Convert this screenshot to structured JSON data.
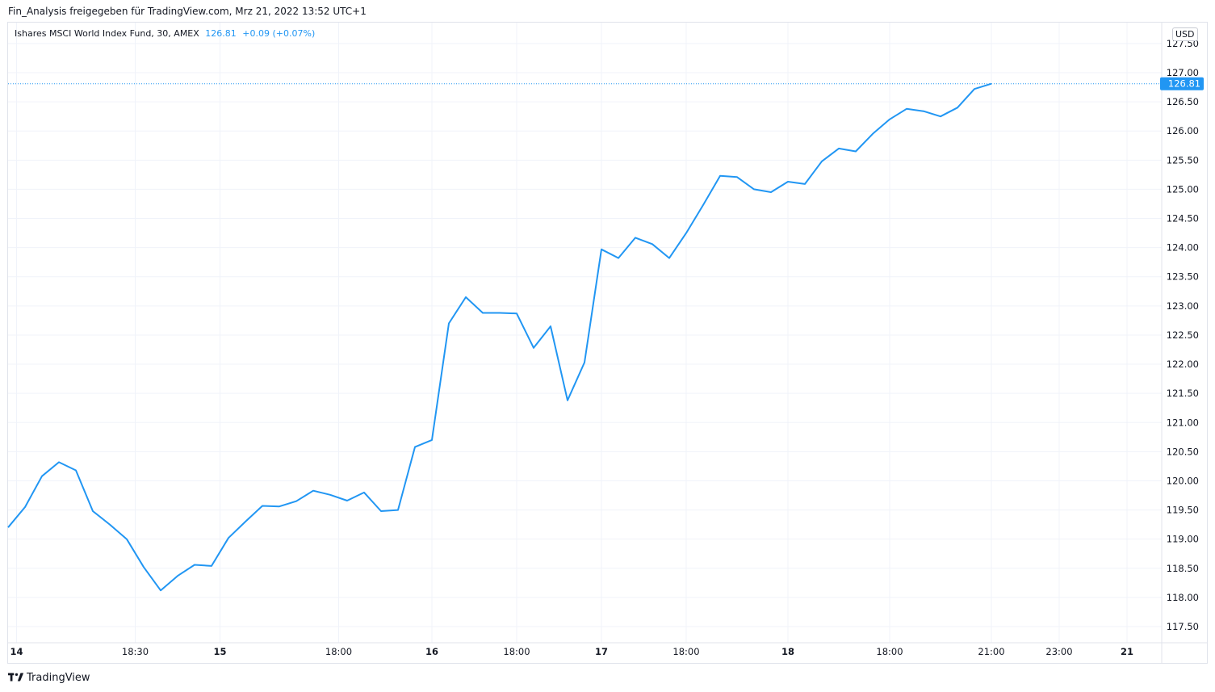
{
  "header": {
    "text": "Fin_Analysis freigegeben für TradingView.com, Mrz 21, 2022 13:52 UTC+1"
  },
  "legend": {
    "name": "Ishares MSCI World Index Fund, 30, AMEX",
    "last": "126.81",
    "change": "+0.09 (+0.07%)"
  },
  "axis": {
    "currency": "USD",
    "last_price_label": "126.81"
  },
  "footer": {
    "brand": "TradingView"
  },
  "colors": {
    "line": "#2196f3",
    "grid": "#f0f3fa",
    "badge": "#2196f3"
  },
  "chart_data": {
    "type": "line",
    "title": "",
    "xlabel": "",
    "ylabel": "",
    "ylim": [
      117.3,
      127.7
    ],
    "y_ticks": [
      "117.50",
      "118.00",
      "118.50",
      "119.00",
      "119.50",
      "120.00",
      "120.50",
      "121.00",
      "121.50",
      "122.00",
      "122.50",
      "123.00",
      "123.50",
      "124.00",
      "124.50",
      "125.00",
      "125.50",
      "126.00",
      "126.50",
      "127.00",
      "127.50"
    ],
    "x_ticks": [
      {
        "label": "14",
        "bold": true,
        "index": 0.5
      },
      {
        "label": "18:30",
        "bold": false,
        "index": 7.5
      },
      {
        "label": "15",
        "bold": true,
        "index": 12.5
      },
      {
        "label": "18:00",
        "bold": false,
        "index": 19.5
      },
      {
        "label": "16",
        "bold": true,
        "index": 25
      },
      {
        "label": "18:00",
        "bold": false,
        "index": 30
      },
      {
        "label": "17",
        "bold": true,
        "index": 35
      },
      {
        "label": "18:00",
        "bold": false,
        "index": 40
      },
      {
        "label": "18",
        "bold": true,
        "index": 46
      },
      {
        "label": "18:00",
        "bold": false,
        "index": 52
      },
      {
        "label": "21:00",
        "bold": false,
        "index": 58
      },
      {
        "label": "23:00",
        "bold": false,
        "index": 62
      },
      {
        "label": "21",
        "bold": true,
        "index": 66
      }
    ],
    "series": [
      {
        "values": [
          119.2,
          119.55,
          120.08,
          120.32,
          120.18,
          119.48,
          119.25,
          119.0,
          118.52,
          118.12,
          118.37,
          118.56,
          118.54,
          119.02,
          119.3,
          119.57,
          119.56,
          119.65,
          119.83,
          119.76,
          119.66,
          119.8,
          119.48,
          119.5,
          120.58,
          120.7,
          122.7,
          123.15,
          122.88,
          122.88,
          122.87,
          122.28,
          122.65,
          121.38,
          122.03,
          123.97,
          123.82,
          124.17,
          124.06,
          123.82,
          124.25,
          124.73,
          125.23,
          125.21,
          125.0,
          124.95,
          125.13,
          125.09,
          125.48,
          125.7,
          125.65,
          125.95,
          126.2,
          126.38,
          126.34,
          126.25,
          126.4,
          126.72,
          126.81
        ]
      }
    ],
    "last_value": 126.81
  }
}
